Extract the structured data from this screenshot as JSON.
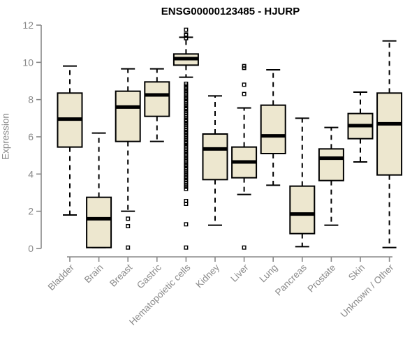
{
  "chart_data": {
    "type": "box",
    "title": "ENSG00000123485 - HJURP",
    "ylabel": "Expression",
    "xlabel": "",
    "ylim": [
      0,
      12
    ],
    "yticks": [
      0,
      2,
      4,
      6,
      8,
      10,
      12
    ],
    "grid": false,
    "legend": "none",
    "box_fill": "#EDE7CF",
    "box_stroke": "#000000",
    "median_color": "#000000",
    "axis_color": "#888888",
    "label_color": "#8a8a8a",
    "title_color": "#000000",
    "categories": [
      "Bladder",
      "Brain",
      "Breast",
      "Gastric",
      "Hematopoietic cells",
      "Kidney",
      "Liver",
      "Lung",
      "Pancreas",
      "Prostate",
      "Skin",
      "Unknown / Other"
    ],
    "series": [
      {
        "label": "Bladder",
        "whisker_low": 1.8,
        "q1": 5.45,
        "median": 6.95,
        "q3": 8.35,
        "whisker_high": 9.8,
        "outliers": []
      },
      {
        "label": "Brain",
        "whisker_low": 0.05,
        "q1": 0.05,
        "median": 1.6,
        "q3": 2.75,
        "whisker_high": 6.2,
        "outliers": []
      },
      {
        "label": "Breast",
        "whisker_low": 2.0,
        "q1": 5.75,
        "median": 7.6,
        "q3": 8.45,
        "whisker_high": 9.65,
        "outliers": [
          1.6,
          1.2,
          0.05
        ]
      },
      {
        "label": "Gastric",
        "whisker_low": 5.75,
        "q1": 7.1,
        "median": 8.25,
        "q3": 8.95,
        "whisker_high": 9.65,
        "outliers": []
      },
      {
        "label": "Hematopoietic cells",
        "whisker_low": 9.2,
        "q1": 9.85,
        "median": 10.2,
        "q3": 10.45,
        "whisker_high": 11.35,
        "outliers": [
          11.75,
          11.5,
          11.45,
          11.3,
          8.85,
          8.75,
          8.65,
          8.6,
          8.5,
          8.4,
          8.3,
          8.2,
          8.1,
          8.05,
          7.95,
          7.85,
          7.75,
          7.65,
          7.55,
          7.5,
          7.4,
          7.3,
          7.2,
          7.1,
          7.0,
          6.9,
          6.85,
          6.75,
          6.65,
          6.55,
          6.45,
          6.35,
          6.25,
          6.2,
          6.1,
          6.0,
          5.9,
          5.8,
          5.7,
          5.65,
          5.55,
          5.45,
          5.35,
          5.25,
          5.15,
          5.05,
          5.0,
          4.9,
          4.8,
          4.7,
          4.6,
          4.5,
          4.45,
          4.35,
          4.25,
          4.15,
          4.05,
          3.95,
          3.85,
          3.8,
          3.7,
          3.6,
          3.5,
          3.4,
          3.3,
          3.2,
          2.55,
          2.4,
          1.3,
          0.05
        ]
      },
      {
        "label": "Kidney",
        "whisker_low": 1.25,
        "q1": 3.7,
        "median": 5.35,
        "q3": 6.15,
        "whisker_high": 8.2,
        "outliers": []
      },
      {
        "label": "Liver",
        "whisker_low": 2.9,
        "q1": 3.8,
        "median": 4.65,
        "q3": 5.45,
        "whisker_high": 7.55,
        "outliers": [
          9.8,
          9.7,
          8.8,
          8.3,
          0.05
        ]
      },
      {
        "label": "Lung",
        "whisker_low": 3.4,
        "q1": 5.1,
        "median": 6.05,
        "q3": 7.7,
        "whisker_high": 9.6,
        "outliers": []
      },
      {
        "label": "Pancreas",
        "whisker_low": 0.1,
        "q1": 0.8,
        "median": 1.85,
        "q3": 3.35,
        "whisker_high": 7.0,
        "outliers": []
      },
      {
        "label": "Prostate",
        "whisker_low": 1.25,
        "q1": 3.65,
        "median": 4.85,
        "q3": 5.35,
        "whisker_high": 6.5,
        "outliers": []
      },
      {
        "label": "Skin",
        "whisker_low": 4.65,
        "q1": 5.9,
        "median": 6.6,
        "q3": 7.25,
        "whisker_high": 8.4,
        "outliers": []
      },
      {
        "label": "Unknown / Other",
        "whisker_low": 0.05,
        "q1": 3.95,
        "median": 6.7,
        "q3": 8.35,
        "whisker_high": 11.15,
        "outliers": []
      }
    ]
  }
}
